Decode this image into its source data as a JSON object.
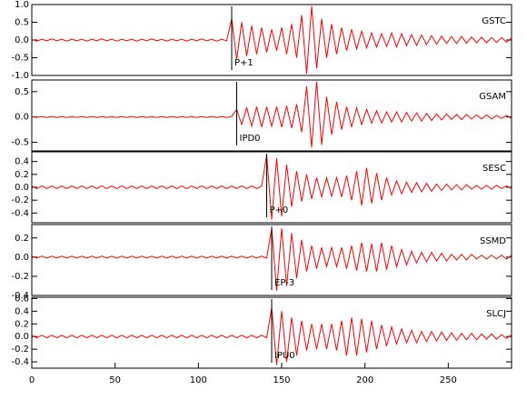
{
  "chart_data": {
    "type": "seismogram",
    "color": "#ff0000",
    "x": [
      0,
      3,
      6,
      9,
      12,
      15,
      18,
      21,
      24,
      27,
      30,
      33,
      36,
      39,
      42,
      45,
      48,
      51,
      54,
      57,
      60,
      63,
      66,
      69,
      72,
      75,
      78,
      81,
      84,
      87,
      90,
      93,
      96,
      99,
      102,
      105,
      108,
      111,
      114,
      117,
      120,
      123,
      126,
      129,
      132,
      135,
      138,
      141,
      144,
      147,
      150,
      153,
      156,
      159,
      162,
      165,
      168,
      171,
      174,
      177,
      180,
      183,
      186,
      189,
      192,
      195,
      198,
      201,
      204,
      207,
      210,
      213,
      216,
      219,
      222,
      225,
      228,
      231,
      234,
      237,
      240,
      243,
      246,
      249,
      252,
      255,
      258,
      261,
      264,
      267,
      270,
      273,
      276,
      279,
      282,
      285,
      288
    ],
    "xlim": [
      0,
      288
    ],
    "xticks": [
      0,
      50,
      100,
      150,
      200,
      250
    ],
    "panels": [
      {
        "name": "GSTC",
        "pick": {
          "x": 120,
          "label": "P+1"
        },
        "ylim": [
          -1,
          1
        ],
        "yticks": [
          {
            "value": 1,
            "label": "1.0"
          },
          0.5,
          {
            "value": 0,
            "label": "0.0"
          },
          -0.5,
          {
            "value": -1,
            "label": "-1.0"
          }
        ],
        "values": [
          0.02,
          -0.03,
          0.02,
          -0.02,
          0.03,
          -0.02,
          0.02,
          -0.03,
          0.02,
          -0.02,
          0.02,
          -0.03,
          0.02,
          -0.02,
          0.03,
          -0.02,
          0.02,
          -0.03,
          0.02,
          -0.02,
          0.02,
          -0.03,
          0.02,
          -0.02,
          0.03,
          -0.02,
          0.02,
          -0.03,
          0.02,
          -0.02,
          0.02,
          -0.03,
          0.02,
          -0.02,
          0.03,
          -0.02,
          0.02,
          -0.03,
          0.02,
          -0.02,
          0.6,
          -0.55,
          0.5,
          -0.45,
          0.4,
          -0.4,
          0.35,
          -0.35,
          0.3,
          -0.3,
          0.35,
          -0.4,
          0.45,
          -0.5,
          0.7,
          -0.95,
          0.95,
          -0.8,
          0.6,
          -0.5,
          0.45,
          -0.4,
          0.35,
          -0.3,
          0.3,
          -0.25,
          0.25,
          -0.22,
          0.2,
          -0.2,
          0.18,
          -0.18,
          0.2,
          -0.2,
          0.18,
          -0.16,
          0.15,
          -0.15,
          0.14,
          -0.13,
          0.12,
          -0.12,
          0.11,
          -0.1,
          0.1,
          -0.1,
          0.1,
          -0.09,
          0.09,
          -0.08,
          0.08,
          -0.08,
          0.07,
          -0.07,
          0.07,
          -0.06,
          0.06
        ]
      },
      {
        "name": "GSAM",
        "pick": {
          "x": 123,
          "label": "IPD0"
        },
        "ylim": [
          -0.67,
          0.73
        ],
        "yticks": [
          0.5,
          {
            "value": 0,
            "label": "0.0"
          },
          -0.5
        ],
        "values": [
          0.01,
          -0.01,
          0.01,
          -0.01,
          0.01,
          -0.01,
          0.01,
          -0.01,
          0.01,
          -0.01,
          0.01,
          -0.01,
          0.01,
          -0.01,
          0.01,
          -0.01,
          0.01,
          -0.01,
          0.01,
          -0.01,
          0.01,
          -0.01,
          0.01,
          -0.01,
          0.01,
          -0.01,
          0.01,
          -0.01,
          0.01,
          -0.01,
          0.01,
          -0.01,
          0.01,
          -0.01,
          0.01,
          -0.01,
          0.01,
          -0.01,
          0.01,
          -0.01,
          0.01,
          0.15,
          -0.15,
          0.18,
          -0.18,
          0.2,
          -0.2,
          0.2,
          -0.18,
          0.2,
          -0.2,
          0.22,
          -0.22,
          0.25,
          -0.3,
          0.6,
          -0.6,
          0.7,
          -0.55,
          0.4,
          -0.35,
          0.3,
          -0.25,
          0.2,
          -0.2,
          0.18,
          -0.15,
          0.15,
          -0.12,
          0.12,
          -0.12,
          0.1,
          -0.1,
          0.1,
          -0.1,
          0.09,
          -0.08,
          0.08,
          -0.08,
          0.07,
          -0.07,
          0.06,
          -0.06,
          0.06,
          -0.05,
          0.05,
          -0.05,
          0.05,
          -0.04,
          0.04,
          -0.04,
          0.04,
          -0.04,
          0.03,
          -0.03,
          0.03,
          -0.03
        ]
      },
      {
        "name": "SESC",
        "pick": {
          "x": 141,
          "label": "P+0"
        },
        "ylim": [
          -0.55,
          0.55
        ],
        "yticks": [
          0.4,
          0.2,
          {
            "value": 0,
            "label": "0.0"
          },
          -0.2,
          -0.4
        ],
        "values": [
          0.02,
          -0.02,
          0.02,
          -0.02,
          0.02,
          -0.02,
          0.02,
          -0.02,
          0.02,
          -0.02,
          0.02,
          -0.02,
          0.02,
          -0.02,
          0.02,
          -0.02,
          0.02,
          -0.02,
          0.02,
          -0.02,
          0.02,
          -0.02,
          0.02,
          -0.02,
          0.02,
          -0.02,
          0.02,
          -0.02,
          0.02,
          -0.02,
          0.02,
          -0.02,
          0.02,
          -0.02,
          0.02,
          -0.02,
          0.02,
          -0.02,
          0.02,
          -0.02,
          0.02,
          -0.02,
          0.02,
          -0.02,
          0.02,
          -0.02,
          0.02,
          0.5,
          -0.5,
          0.45,
          -0.45,
          0.35,
          -0.3,
          0.25,
          -0.22,
          0.2,
          -0.18,
          0.15,
          -0.15,
          0.15,
          -0.14,
          0.15,
          -0.15,
          0.18,
          -0.2,
          0.25,
          -0.28,
          0.3,
          -0.25,
          0.22,
          -0.2,
          0.15,
          -0.12,
          0.1,
          -0.1,
          0.08,
          -0.08,
          0.07,
          -0.07,
          0.06,
          -0.06,
          0.05,
          -0.05,
          0.05,
          -0.04,
          0.04,
          -0.04,
          0.04,
          -0.03,
          0.03,
          -0.03,
          0.03,
          -0.03,
          0.03,
          -0.02,
          0.02,
          -0.02
        ]
      },
      {
        "name": "SSMD",
        "pick": {
          "x": 144,
          "label": "EP-3"
        },
        "ylim": [
          -0.4,
          0.34
        ],
        "yticks": [
          0.2,
          {
            "value": 0,
            "label": "0.0"
          },
          -0.2,
          -0.4
        ],
        "values": [
          0.01,
          -0.01,
          0.01,
          -0.01,
          0.01,
          -0.01,
          0.01,
          -0.01,
          0.01,
          -0.01,
          0.01,
          -0.01,
          0.01,
          -0.01,
          0.01,
          -0.01,
          0.01,
          -0.01,
          0.01,
          -0.01,
          0.01,
          -0.01,
          0.01,
          -0.01,
          0.01,
          -0.01,
          0.01,
          -0.01,
          0.01,
          -0.01,
          0.01,
          -0.01,
          0.01,
          -0.01,
          0.01,
          -0.01,
          0.01,
          -0.01,
          0.01,
          -0.01,
          0.01,
          -0.01,
          0.01,
          -0.01,
          0.01,
          -0.01,
          0.01,
          -0.01,
          0.3,
          -0.35,
          0.3,
          -0.3,
          0.25,
          -0.22,
          0.18,
          -0.15,
          0.12,
          -0.12,
          0.1,
          -0.1,
          0.1,
          -0.1,
          0.1,
          -0.12,
          0.12,
          -0.14,
          0.15,
          -0.15,
          0.14,
          -0.15,
          0.15,
          -0.13,
          0.12,
          -0.1,
          0.08,
          -0.08,
          0.06,
          -0.06,
          0.05,
          -0.05,
          0.05,
          -0.04,
          0.04,
          -0.04,
          0.03,
          -0.03,
          0.03,
          -0.03,
          0.03,
          -0.02,
          0.02,
          -0.02,
          0.02,
          -0.02,
          0.02,
          -0.02,
          0.02
        ]
      },
      {
        "name": "SLCJ",
        "pick": {
          "x": 144,
          "label": "IPU0"
        },
        "ylim": [
          -0.5,
          0.62
        ],
        "yticks": [
          0.6,
          0.4,
          0.2,
          {
            "value": 0,
            "label": "0.0"
          },
          -0.2,
          -0.4
        ],
        "values": [
          0.02,
          -0.02,
          0.02,
          -0.02,
          0.02,
          -0.02,
          0.02,
          -0.02,
          0.02,
          -0.02,
          0.02,
          -0.02,
          0.02,
          -0.02,
          0.02,
          -0.02,
          0.02,
          -0.02,
          0.02,
          -0.02,
          0.02,
          -0.02,
          0.02,
          -0.02,
          0.02,
          -0.02,
          0.02,
          -0.02,
          0.02,
          -0.02,
          0.02,
          -0.02,
          0.02,
          -0.02,
          0.02,
          -0.02,
          0.02,
          -0.02,
          0.02,
          -0.02,
          0.02,
          -0.02,
          0.02,
          -0.02,
          0.02,
          -0.02,
          0.02,
          -0.02,
          0.45,
          -0.45,
          0.4,
          -0.4,
          0.3,
          -0.3,
          0.25,
          -0.22,
          0.2,
          -0.2,
          0.2,
          -0.2,
          0.2,
          -0.22,
          0.25,
          -0.3,
          0.3,
          -0.3,
          0.28,
          -0.25,
          0.25,
          -0.2,
          0.18,
          -0.15,
          0.15,
          -0.12,
          0.12,
          -0.1,
          0.1,
          -0.1,
          0.08,
          -0.08,
          0.08,
          -0.07,
          0.07,
          -0.06,
          0.06,
          -0.06,
          0.05,
          -0.05,
          0.05,
          -0.05,
          0.04,
          -0.04,
          0.04,
          -0.04,
          0.03,
          -0.03,
          0.03
        ]
      }
    ]
  }
}
